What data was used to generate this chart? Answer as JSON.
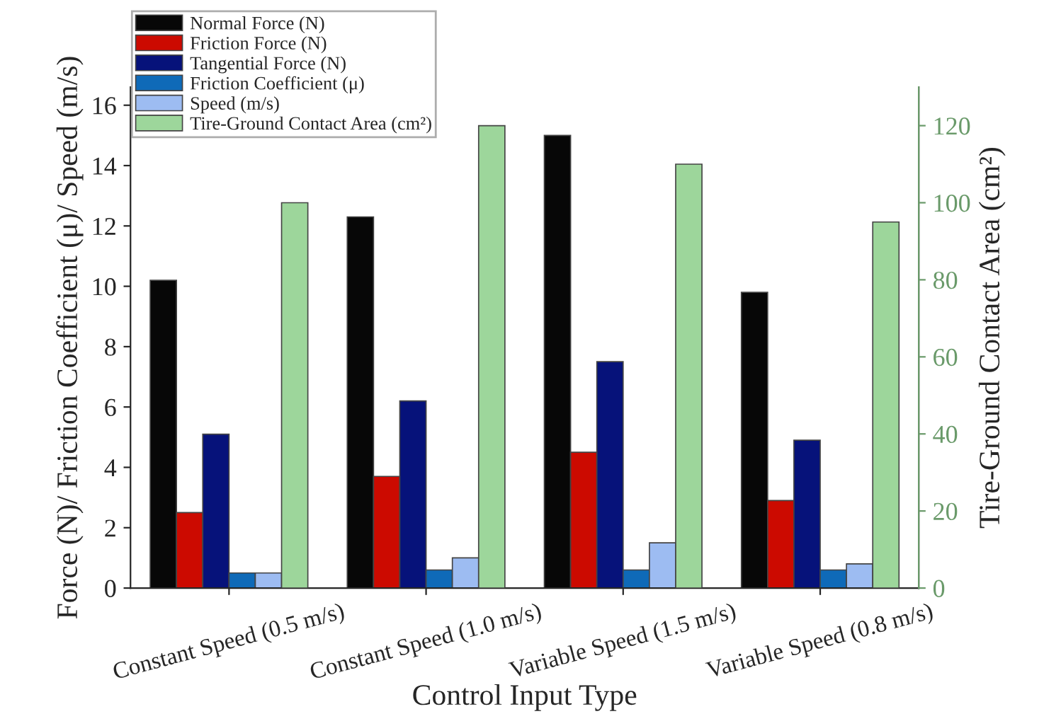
{
  "chart_data": {
    "type": "bar",
    "xlabel": "Control Input Type",
    "ylabel": "Force (N)/ Friction Coefficient (μ)/ Speed (m/s)",
    "y2label": "Tire-Ground Contact Area (cm²)",
    "categories": [
      "Constant Speed (0.5 m/s)",
      "Constant Speed (1.0 m/s)",
      "Variable Speed (1.5 m/s)",
      "Variable Speed (0.8 m/s)"
    ],
    "series": [
      {
        "name": "Normal Force (N)",
        "color": "#070707",
        "values": [
          10.2,
          12.3,
          15.0,
          9.8
        ]
      },
      {
        "name": "Friction Force (N)",
        "color": "#cc0a00",
        "values": [
          2.5,
          3.7,
          4.5,
          2.9
        ]
      },
      {
        "name": "Tangential Force (N)",
        "color": "#06127a",
        "values": [
          5.1,
          6.2,
          7.5,
          4.9
        ]
      },
      {
        "name": "Friction Coefficient (μ)",
        "color": "#0f6ab8",
        "values": [
          0.5,
          0.6,
          0.6,
          0.6
        ]
      },
      {
        "name": "Speed (m/s)",
        "color": "#9dbcf2",
        "values": [
          0.5,
          1.0,
          1.5,
          0.8
        ]
      },
      {
        "name": "Tire-Ground Contact Area (cm²)",
        "color": "#9dd69b",
        "axis": "y2",
        "values": [
          100,
          120,
          110,
          95
        ]
      }
    ],
    "ylim": [
      0,
      16.6
    ],
    "yticks": [
      0,
      2,
      4,
      6,
      8,
      10,
      12,
      14,
      16
    ],
    "y2lim": [
      0,
      130
    ],
    "y2ticks": [
      0,
      20,
      40,
      60,
      80,
      100,
      120
    ],
    "legend": "top left",
    "grid": false
  }
}
